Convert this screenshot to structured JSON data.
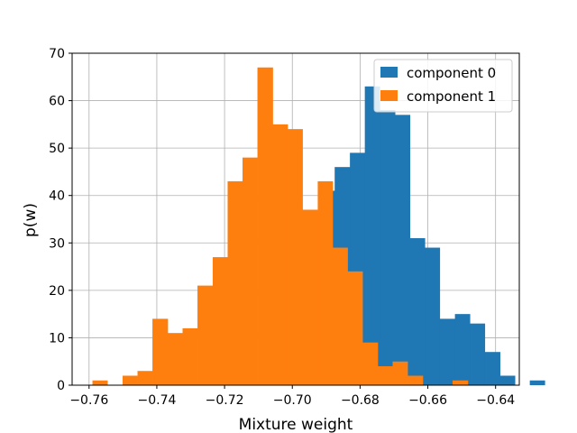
{
  "chart_data": {
    "type": "histogram",
    "xlabel": "Mixture weight",
    "ylabel": "p(w)",
    "xlim": [
      -0.765,
      -0.633
    ],
    "ylim": [
      0,
      70
    ],
    "grid": true,
    "legend_position": "top-right",
    "x_ticks": [
      -0.76,
      -0.74,
      -0.72,
      -0.7,
      -0.68,
      -0.66,
      -0.64
    ],
    "x_tick_labels": [
      "−0.76",
      "−0.74",
      "−0.72",
      "−0.70",
      "−0.68",
      "−0.66",
      "−0.64"
    ],
    "y_ticks": [
      0,
      10,
      20,
      30,
      40,
      50,
      60,
      70
    ],
    "y_tick_labels": [
      "0",
      "10",
      "20",
      "30",
      "40",
      "50",
      "60",
      "70"
    ],
    "series": [
      {
        "name": "component 0",
        "color": "#1f77b4",
        "bins": [
          {
            "x0": -0.692,
            "x1": -0.6875,
            "count": 41
          },
          {
            "x0": -0.6875,
            "x1": -0.683,
            "count": 46
          },
          {
            "x0": -0.683,
            "x1": -0.6786,
            "count": 49
          },
          {
            "x0": -0.6786,
            "x1": -0.6742,
            "count": 63
          },
          {
            "x0": -0.6742,
            "x1": -0.6697,
            "count": 58
          },
          {
            "x0": -0.6697,
            "x1": -0.6653,
            "count": 57
          },
          {
            "x0": -0.6653,
            "x1": -0.6609,
            "count": 31
          },
          {
            "x0": -0.6609,
            "x1": -0.6565,
            "count": 29
          },
          {
            "x0": -0.6565,
            "x1": -0.652,
            "count": 14
          },
          {
            "x0": -0.652,
            "x1": -0.6476,
            "count": 15
          },
          {
            "x0": -0.6476,
            "x1": -0.6432,
            "count": 13
          },
          {
            "x0": -0.6432,
            "x1": -0.6387,
            "count": 7
          },
          {
            "x0": -0.6387,
            "x1": -0.6343,
            "count": 2
          },
          {
            "x0": -0.6343,
            "x1": -0.6299,
            "count": 0
          },
          {
            "x0": -0.6299,
            "x1": -0.6255,
            "count": 1
          }
        ]
      },
      {
        "name": "component 1",
        "color": "#ff7f0e",
        "bins": [
          {
            "x0": -0.759,
            "x1": -0.7546,
            "count": 1
          },
          {
            "x0": -0.7546,
            "x1": -0.7501,
            "count": 0
          },
          {
            "x0": -0.7501,
            "x1": -0.7457,
            "count": 2
          },
          {
            "x0": -0.7457,
            "x1": -0.7413,
            "count": 3
          },
          {
            "x0": -0.7413,
            "x1": -0.7368,
            "count": 14
          },
          {
            "x0": -0.7368,
            "x1": -0.7324,
            "count": 11
          },
          {
            "x0": -0.7324,
            "x1": -0.728,
            "count": 12
          },
          {
            "x0": -0.728,
            "x1": -0.7235,
            "count": 21
          },
          {
            "x0": -0.7235,
            "x1": -0.7191,
            "count": 27
          },
          {
            "x0": -0.7191,
            "x1": -0.7147,
            "count": 43
          },
          {
            "x0": -0.7147,
            "x1": -0.7103,
            "count": 48
          },
          {
            "x0": -0.7103,
            "x1": -0.7058,
            "count": 67
          },
          {
            "x0": -0.7058,
            "x1": -0.7014,
            "count": 55
          },
          {
            "x0": -0.7014,
            "x1": -0.697,
            "count": 54
          },
          {
            "x0": -0.697,
            "x1": -0.6925,
            "count": 37
          },
          {
            "x0": -0.6925,
            "x1": -0.6881,
            "count": 43
          },
          {
            "x0": -0.6881,
            "x1": -0.6837,
            "count": 29
          },
          {
            "x0": -0.6837,
            "x1": -0.6793,
            "count": 24
          },
          {
            "x0": -0.6793,
            "x1": -0.6748,
            "count": 9
          },
          {
            "x0": -0.6748,
            "x1": -0.6704,
            "count": 4
          },
          {
            "x0": -0.6704,
            "x1": -0.666,
            "count": 5
          },
          {
            "x0": -0.666,
            "x1": -0.6615,
            "count": 2
          },
          {
            "x0": -0.6615,
            "x1": -0.6571,
            "count": 0
          },
          {
            "x0": -0.6571,
            "x1": -0.6527,
            "count": 0
          },
          {
            "x0": -0.6527,
            "x1": -0.6482,
            "count": 1
          }
        ]
      }
    ]
  }
}
